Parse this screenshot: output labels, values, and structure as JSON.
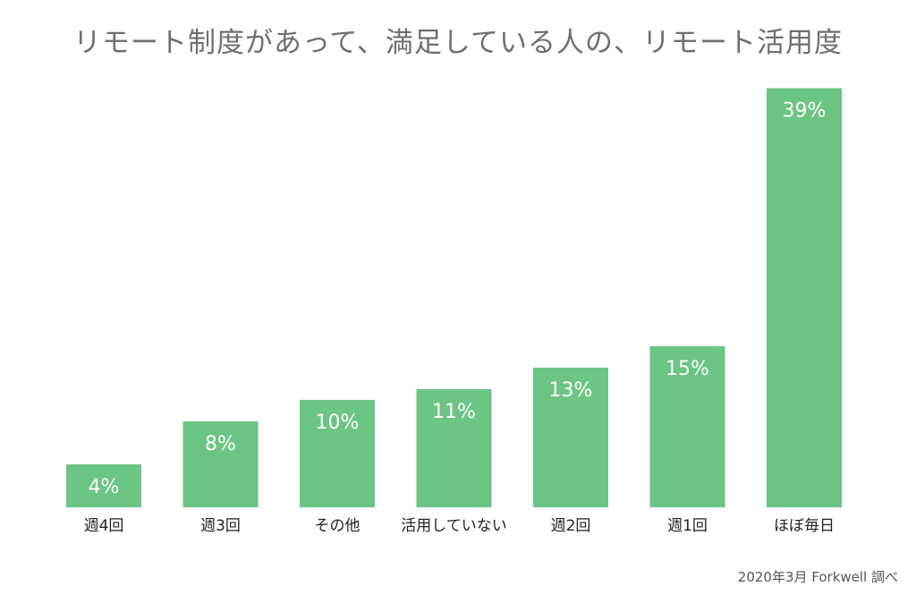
{
  "chart_data": {
    "type": "bar",
    "title": "リモート制度があって、満足している人の、リモート活用度",
    "categories": [
      "週4回",
      "週3回",
      "その他",
      "活用していない",
      "週2回",
      "週1回",
      "ほぼ毎日"
    ],
    "values": [
      4,
      8,
      10,
      11,
      13,
      15,
      39
    ],
    "value_labels": [
      "4%",
      "8%",
      "10%",
      "11%",
      "13%",
      "15%",
      "39%"
    ],
    "unit": "%",
    "ylim": [
      0,
      40
    ],
    "grid": false,
    "legend": "none",
    "xlabel": "",
    "ylabel": "",
    "colors": {
      "bar": "#6cc585",
      "value_label": "#ffffff",
      "category_label": "#222222",
      "title": "#6f6f6f"
    }
  },
  "footer": {
    "source": "2020年3月 Forkwell 調べ"
  }
}
